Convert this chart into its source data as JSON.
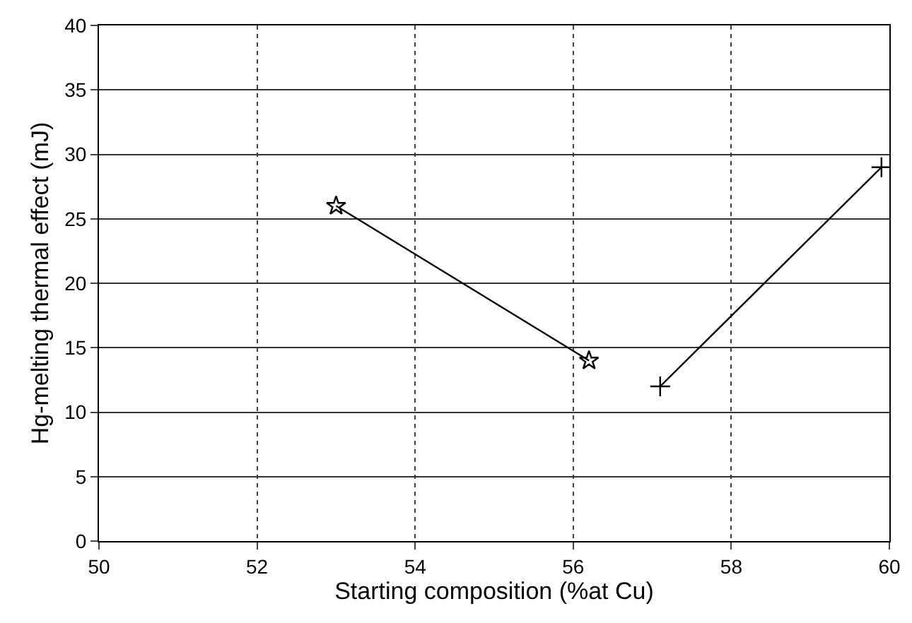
{
  "chart_data": {
    "type": "line",
    "xlabel": "Starting composition (%at Cu)",
    "ylabel": "Hg-melting thermal effect (mJ)",
    "series": [
      {
        "color": "#000000",
        "marker": "star",
        "x": [
          53.0,
          56.2
        ],
        "values": [
          26,
          14
        ]
      },
      {
        "color": "#000000",
        "marker": "cross",
        "x": [
          57.1,
          59.9
        ],
        "values": [
          12,
          29
        ]
      }
    ],
    "xlim": [
      50,
      60
    ],
    "xticks": [
      50,
      52,
      54,
      56,
      58,
      60
    ],
    "ylim": [
      0,
      40
    ],
    "yticks": [
      0,
      5,
      10,
      15,
      20,
      25,
      30,
      35,
      40
    ],
    "grid": true
  }
}
